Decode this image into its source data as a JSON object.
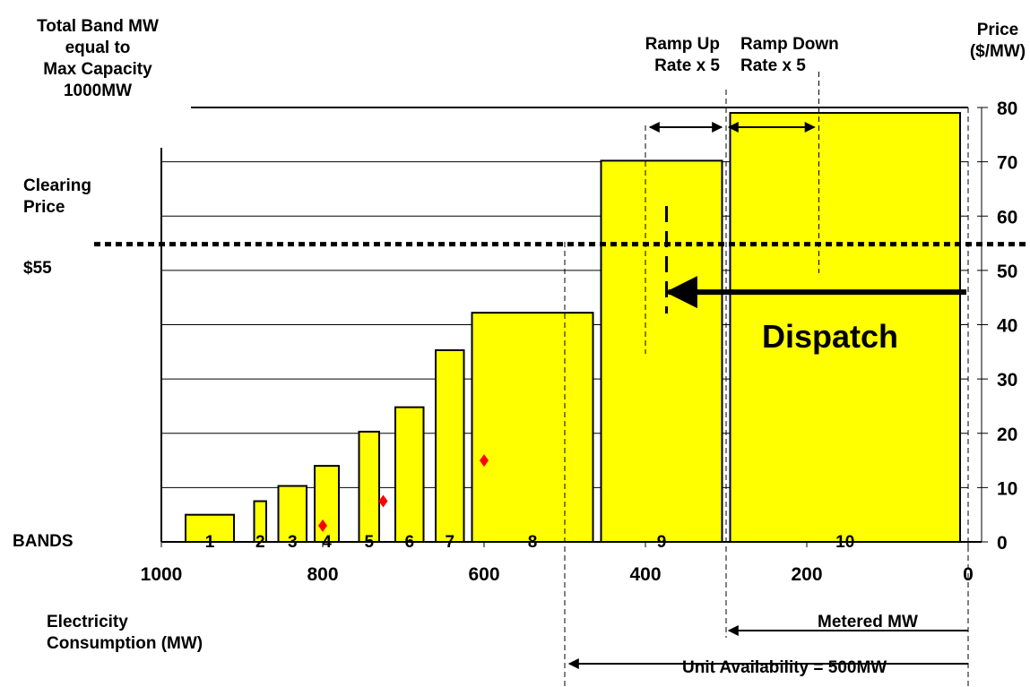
{
  "annotations": {
    "left_title": [
      "Total Band MW",
      "equal to",
      "Max Capacity",
      "1000MW"
    ],
    "clearing_label": [
      "Clearing",
      "Price"
    ],
    "clearing_value": "$55",
    "bands_label": "BANDS",
    "price_title": [
      "Price",
      "($/MW)"
    ],
    "consumption_label": [
      "Electricity",
      "Consumption (MW)"
    ],
    "ramp_up": [
      "Ramp Up",
      "Rate x 5"
    ],
    "ramp_down": [
      "Ramp Down",
      "Rate x 5"
    ],
    "metered": "Metered MW",
    "availability": "Unit Availability =  500MW",
    "dispatch": "Dispatch"
  },
  "chart_data": {
    "type": "bar",
    "title": "",
    "xlabel": "Electricity Consumption (MW)",
    "ylabel": "Price ($/MW)",
    "x_reversed": true,
    "xlim": [
      1000,
      0
    ],
    "ylim": [
      0,
      80
    ],
    "x_ticks": [
      "1000",
      "800",
      "600",
      "400",
      "200",
      "0"
    ],
    "y_ticks": [
      "0",
      "10",
      "20",
      "30",
      "40",
      "50",
      "60",
      "70",
      "80"
    ],
    "grid": "horizontal",
    "colors": {
      "bar_fill": "#ffff00",
      "bar_stroke": "#000000",
      "marker": "#ff0000"
    },
    "max_capacity_mw": 1000,
    "clearing_price": 55,
    "bands": [
      {
        "label": "1",
        "mw_from": 970,
        "mw_to": 910,
        "price": 5
      },
      {
        "label": "2",
        "mw_from": 885,
        "mw_to": 870,
        "price": 7.5
      },
      {
        "label": "3",
        "mw_from": 855,
        "mw_to": 820,
        "price": 10.3
      },
      {
        "label": "4",
        "mw_from": 810,
        "mw_to": 780,
        "price": 14
      },
      {
        "label": "5",
        "mw_from": 755,
        "mw_to": 730,
        "price": 20.3
      },
      {
        "label": "6",
        "mw_from": 710,
        "mw_to": 675,
        "price": 24.8
      },
      {
        "label": "7",
        "mw_from": 660,
        "mw_to": 625,
        "price": 35.3
      },
      {
        "label": "8",
        "mw_from": 615,
        "mw_to": 465,
        "price": 42.2
      },
      {
        "label": "9",
        "mw_from": 455,
        "mw_to": 305,
        "price": 70.2
      },
      {
        "label": "10",
        "mw_from": 295,
        "mw_to": 10,
        "price": 79
      }
    ],
    "markers": [
      {
        "mw": 800,
        "price": 3
      },
      {
        "mw": 725,
        "price": 7.5
      },
      {
        "mw": 600,
        "price": 15
      }
    ],
    "metered_mw": 300,
    "unit_availability_mw": 500,
    "ramp_up_from_mw": 400,
    "ramp_down_to_mw": 185,
    "dispatch_mw": 375,
    "dispatch_price": 46
  }
}
